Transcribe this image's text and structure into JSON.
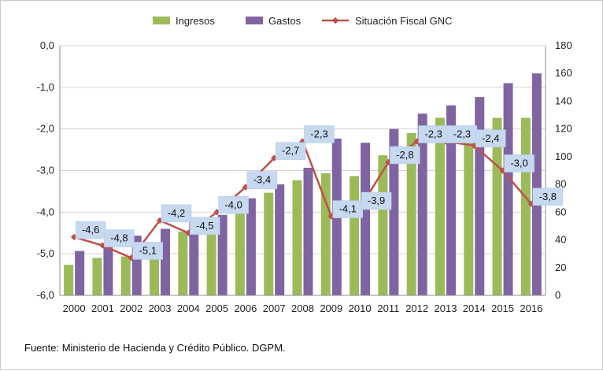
{
  "chart_data": {
    "type": "bar",
    "categories": [
      "2000",
      "2001",
      "2002",
      "2003",
      "2004",
      "2005",
      "2006",
      "2007",
      "2008",
      "2009",
      "2010",
      "2011",
      "2012",
      "2013",
      "2014",
      "2015",
      "2016"
    ],
    "series": [
      {
        "name": "Ingresos",
        "type": "bar",
        "axis": "right",
        "color": "#9bbb59",
        "values": [
          22,
          27,
          28,
          34,
          46,
          51,
          63,
          74,
          83,
          88,
          86,
          101,
          117,
          128,
          121,
          128,
          128
        ]
      },
      {
        "name": "Gastos",
        "type": "bar",
        "axis": "right",
        "color": "#8064a2",
        "values": [
          32,
          37,
          43,
          48,
          53,
          58,
          70,
          80,
          92,
          113,
          110,
          120,
          131,
          137,
          143,
          153,
          160
        ]
      },
      {
        "name": "Situación Fiscal GNC",
        "type": "line",
        "axis": "left",
        "color": "#c0504d",
        "values": [
          -4.6,
          -4.8,
          -5.1,
          -4.2,
          -4.5,
          -4.0,
          -3.4,
          -2.7,
          -2.3,
          -4.1,
          -3.9,
          -2.8,
          -2.3,
          -2.3,
          -2.4,
          -3.0,
          -3.8
        ],
        "labels": [
          "-4,6",
          "-4,8",
          "-5,1",
          "-4,2",
          "-4,5",
          "-4,0",
          "-3,4",
          "-2,7",
          "-2,3",
          "-4,1",
          "-3,9",
          "-2,8",
          "-2,3",
          "-2,3",
          "-2,4",
          "-3,0",
          "-3,8"
        ]
      }
    ],
    "y_left": {
      "min": -6,
      "max": 0,
      "ticks": [
        "-6,0",
        "-5,0",
        "-4,0",
        "-3,0",
        "-2,0",
        "-1,0",
        "0,0"
      ]
    },
    "y_right": {
      "min": 0,
      "max": 180,
      "ticks": [
        "0",
        "20",
        "40",
        "60",
        "80",
        "100",
        "120",
        "140",
        "160",
        "180"
      ]
    },
    "legend_position": "top",
    "grid": "horizontal"
  },
  "source_note": "Fuente: Ministerio de Hacienda y Crédito Público. DGPM."
}
